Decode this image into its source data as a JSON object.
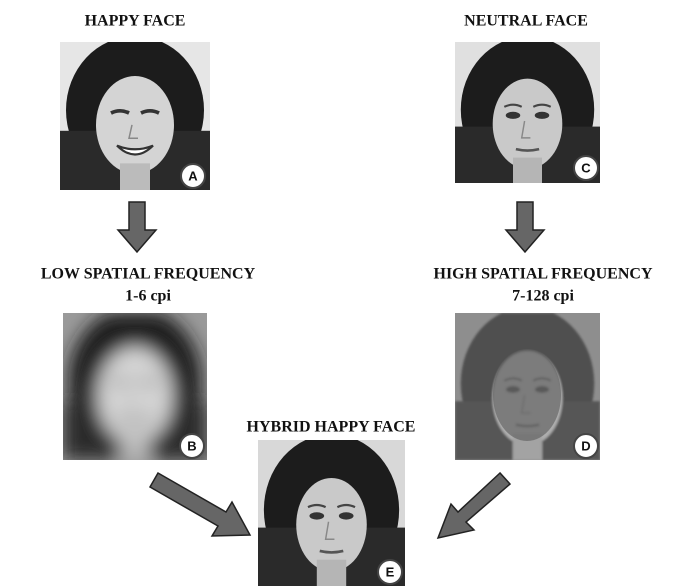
{
  "nodes": {
    "happy": {
      "title": "HAPPY FACE",
      "badge": "A"
    },
    "neutral": {
      "title": "NEUTRAL FACE",
      "badge": "C"
    },
    "low": {
      "title": "LOW SPATIAL FREQUENCY",
      "subtitle": "1-6 cpi",
      "badge": "B"
    },
    "high": {
      "title": "HIGH SPATIAL FREQUENCY",
      "subtitle": "7-128 cpi",
      "badge": "D"
    },
    "hybrid": {
      "title": "HYBRID HAPPY FACE",
      "badge": "E"
    }
  }
}
